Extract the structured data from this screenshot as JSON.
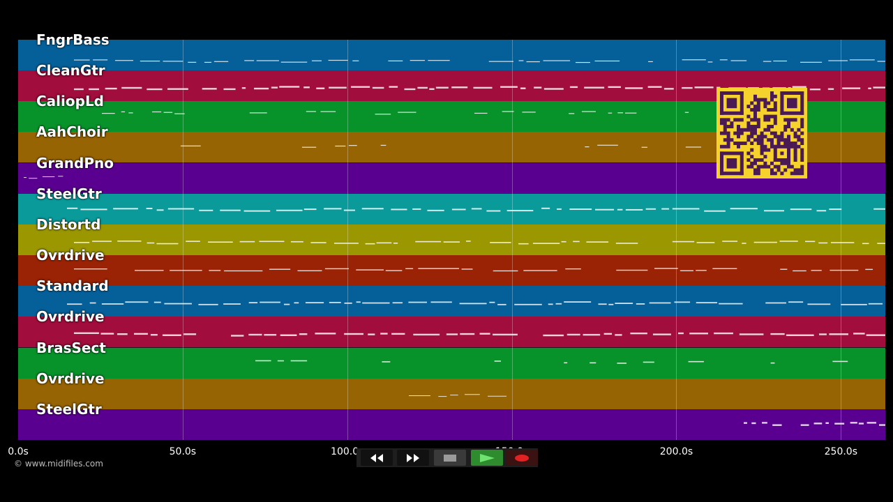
{
  "tracks": [
    {
      "name": "FngrBass",
      "color": "#05609a"
    },
    {
      "name": "CleanGtr",
      "color": "#a10d3c"
    },
    {
      "name": "CaliopLd",
      "color": "#07932a"
    },
    {
      "name": "AahChoir",
      "color": "#966403"
    },
    {
      "name": "GrandPno",
      "color": "#5a0090"
    },
    {
      "name": "SteelGtr",
      "color": "#0a9a9a"
    },
    {
      "name": "Distortd",
      "color": "#9a9700"
    },
    {
      "name": "Ovrdrive",
      "color": "#992304"
    },
    {
      "name": "Standard",
      "color": "#05609a"
    },
    {
      "name": "Ovrdrive",
      "color": "#a10d3c"
    },
    {
      "name": "BrasSect",
      "color": "#07932a"
    },
    {
      "name": "Ovrdrive",
      "color": "#966403"
    },
    {
      "name": "SteelGtr",
      "color": "#5a0090"
    }
  ],
  "timeline": {
    "ticks": [
      {
        "label": "0.0s",
        "seconds": 0
      },
      {
        "label": "50.0s",
        "seconds": 50
      },
      {
        "label": "100.0s",
        "seconds": 100
      },
      {
        "label": "150.0s",
        "seconds": 150
      },
      {
        "label": "200.0s",
        "seconds": 200
      },
      {
        "label": "250.0s",
        "seconds": 250
      }
    ],
    "max_seconds": 263.5
  },
  "copyright": "© www.midifiles.com",
  "transport": {
    "rewind": "rewind-icon",
    "fast_forward": "fast-forward-icon",
    "stop": "stop-icon",
    "play": "play-icon",
    "record": "record-icon",
    "play_color": "#2e8b2e",
    "record_color": "#e02222"
  },
  "qr_color": "#f5d22c"
}
